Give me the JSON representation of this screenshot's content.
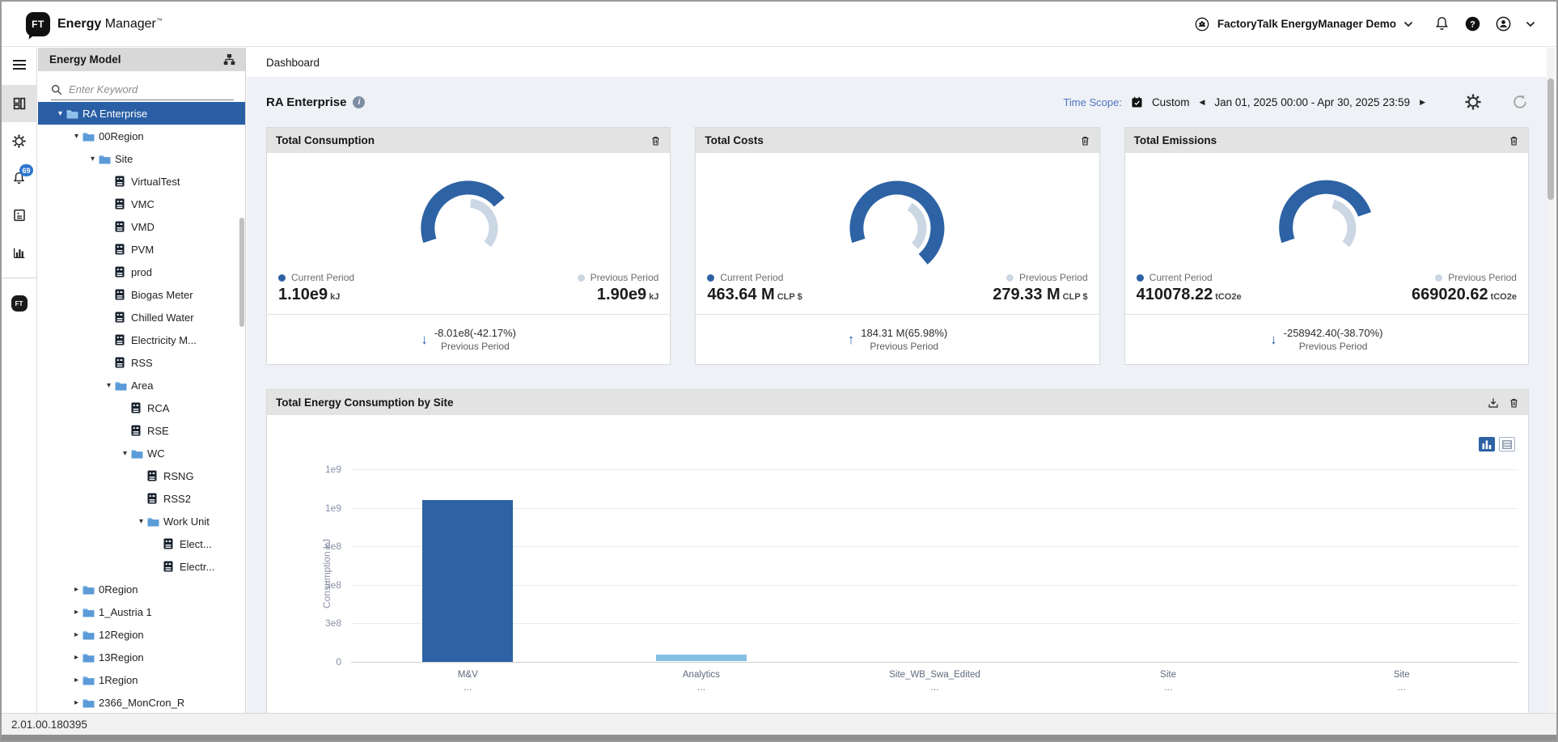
{
  "app": {
    "logo_text": "FT",
    "brand_bold": "Energy",
    "brand_regular": "Manager",
    "brand_tm": "™",
    "version": "2.01.00.180395"
  },
  "header": {
    "tenant": "FactoryTalk EnergyManager Demo"
  },
  "rail": {
    "items": [
      {
        "icon": "menu-icon",
        "active": false
      },
      {
        "icon": "dashboard-icon",
        "active": true
      },
      {
        "icon": "settings-icon",
        "active": false
      },
      {
        "icon": "notifications-icon",
        "active": false,
        "badge": "69"
      },
      {
        "icon": "meter-icon",
        "active": false
      },
      {
        "icon": "bar-chart-icon",
        "active": false
      },
      {
        "icon": "factorytalk-icon",
        "active": false,
        "divider_before": true
      }
    ]
  },
  "sidebar": {
    "title": "Energy Model",
    "search_placeholder": "Enter Keyword",
    "tree": [
      {
        "label": "RA Enterprise",
        "level": 0,
        "type": "folder",
        "state": "expanded",
        "selected": true
      },
      {
        "label": "00Region",
        "level": 1,
        "type": "folder",
        "state": "expanded",
        "selected": false
      },
      {
        "label": "Site",
        "level": 2,
        "type": "folder",
        "state": "expanded",
        "selected": false
      },
      {
        "label": "VirtualTest",
        "level": 3,
        "type": "meter",
        "state": "leaf",
        "selected": false
      },
      {
        "label": "VMC",
        "level": 3,
        "type": "meter",
        "state": "leaf",
        "selected": false
      },
      {
        "label": "VMD",
        "level": 3,
        "type": "meter",
        "state": "leaf",
        "selected": false
      },
      {
        "label": "PVM",
        "level": 3,
        "type": "meter",
        "state": "leaf",
        "selected": false
      },
      {
        "label": "prod",
        "level": 3,
        "type": "meter",
        "state": "leaf",
        "selected": false
      },
      {
        "label": "Biogas Meter",
        "level": 3,
        "type": "meter",
        "state": "leaf",
        "selected": false
      },
      {
        "label": "Chilled Water",
        "level": 3,
        "type": "meter",
        "state": "leaf",
        "selected": false
      },
      {
        "label": "Electricity M...",
        "level": 3,
        "type": "meter",
        "state": "leaf",
        "selected": false
      },
      {
        "label": "RSS",
        "level": 3,
        "type": "meter",
        "state": "leaf",
        "selected": false
      },
      {
        "label": "Area",
        "level": 3,
        "type": "folder",
        "state": "expanded",
        "selected": false
      },
      {
        "label": "RCA",
        "level": 4,
        "type": "meter",
        "state": "leaf",
        "selected": false
      },
      {
        "label": "RSE",
        "level": 4,
        "type": "meter",
        "state": "leaf",
        "selected": false
      },
      {
        "label": "WC",
        "level": 4,
        "type": "folder",
        "state": "expanded",
        "selected": false
      },
      {
        "label": "RSNG",
        "level": 5,
        "type": "meter",
        "state": "leaf",
        "selected": false
      },
      {
        "label": "RSS2",
        "level": 5,
        "type": "meter",
        "state": "leaf",
        "selected": false
      },
      {
        "label": "Work Unit",
        "level": 5,
        "type": "folder",
        "state": "expanded",
        "selected": false
      },
      {
        "label": "Elect...",
        "level": 6,
        "type": "meter",
        "state": "leaf",
        "selected": false
      },
      {
        "label": "Electr...",
        "level": 6,
        "type": "meter",
        "state": "leaf",
        "selected": false
      },
      {
        "label": "0Region",
        "level": 1,
        "type": "folder",
        "state": "collapsed",
        "selected": false
      },
      {
        "label": "1_Austria 1",
        "level": 1,
        "type": "folder",
        "state": "collapsed",
        "selected": false
      },
      {
        "label": "12Region",
        "level": 1,
        "type": "folder",
        "state": "collapsed",
        "selected": false
      },
      {
        "label": "13Region",
        "level": 1,
        "type": "folder",
        "state": "collapsed",
        "selected": false
      },
      {
        "label": "1Region",
        "level": 1,
        "type": "folder",
        "state": "collapsed",
        "selected": false
      },
      {
        "label": "2366_MonCron_R",
        "level": 1,
        "type": "folder",
        "state": "collapsed",
        "selected": false
      }
    ]
  },
  "tabbar": {
    "dashboard": "Dashboard"
  },
  "page": {
    "title": "RA Enterprise",
    "time_scope_label": "Time Scope:",
    "time_scope_mode": "Custom",
    "time_scope_range": "Jan 01, 2025 00:00 - Apr 30, 2025 23:59"
  },
  "kpi_cards": [
    {
      "title": "Total Consumption",
      "current_label": "Current Period",
      "current_value": "1.10e9",
      "current_unit": "kJ",
      "previous_label": "Previous Period",
      "previous_value": "1.90e9",
      "previous_unit": "kJ",
      "delta_value": "-8.01e8(-42.17%)",
      "delta_caption": "Previous Period",
      "delta_direction": "down",
      "gauge": {
        "blue": [
          198,
          40
        ],
        "gray": [
          85,
          -40
        ]
      }
    },
    {
      "title": "Total Costs",
      "current_label": "Current Period",
      "current_value": "463.64 M",
      "current_unit": "CLP $",
      "previous_label": "Previous Period",
      "previous_value": "279.33 M",
      "previous_unit": "CLP $",
      "delta_value": "184.31 M(65.98%)",
      "delta_caption": "Previous Period",
      "delta_direction": "up",
      "gauge": {
        "blue": [
          198,
          -50
        ],
        "gray": [
          60,
          -45
        ]
      }
    },
    {
      "title": "Total Emissions",
      "current_label": "Current Period",
      "current_value": "410078.22",
      "current_unit": "tCO2e",
      "previous_label": "Previous Period",
      "previous_value": "669020.62",
      "previous_unit": "tCO2e",
      "delta_value": "-258942.40(-38.70%)",
      "delta_caption": "Previous Period",
      "delta_direction": "down",
      "gauge": {
        "blue": [
          198,
          20
        ],
        "gray": [
          75,
          -40
        ]
      }
    }
  ],
  "chart_card": {
    "title": "Total Energy Consumption by Site"
  },
  "chart_data": [
    {
      "type": "gauge",
      "title": "Total Consumption",
      "unit": "kJ",
      "series": [
        {
          "name": "Current Period",
          "value": 1100000000
        },
        {
          "name": "Previous Period",
          "value": 1900000000
        }
      ],
      "delta": "-8.01e8(-42.17%)"
    },
    {
      "type": "gauge",
      "title": "Total Costs",
      "unit": "CLP $",
      "series": [
        {
          "name": "Current Period",
          "value": 463640000
        },
        {
          "name": "Previous Period",
          "value": 279330000
        }
      ],
      "delta": "184.31 M(65.98%)"
    },
    {
      "type": "gauge",
      "title": "Total Emissions",
      "unit": "tCO2e",
      "series": [
        {
          "name": "Current Period",
          "value": 410078.22
        },
        {
          "name": "Previous Period",
          "value": 669020.62
        }
      ],
      "delta": "-258942.40(-38.70%)"
    },
    {
      "type": "bar",
      "title": "Total Energy Consumption by Site",
      "xlabel": "",
      "ylabel": "Consumption kJ",
      "categories": [
        "M&V",
        "Analytics",
        "Site_WB_Swa_Edited",
        "Site",
        "Site"
      ],
      "truncated_sublabels": [
        "…",
        "…",
        "…",
        "…",
        "…"
      ],
      "values": [
        1050000000,
        45000000,
        0,
        0,
        0
      ],
      "bar_colors": [
        "#2d62a4",
        "#85c0e4",
        "#85c0e4",
        "#85c0e4",
        "#85c0e4"
      ],
      "ylim": [
        0,
        1250000000
      ],
      "ytick_labels_bottom_to_top": [
        "0",
        "3e8",
        "5e8",
        "8e8",
        "1e9",
        "1e9"
      ],
      "grid": true,
      "legend_position": "none"
    }
  ],
  "colors": {
    "primary_blue": "#2d62a4",
    "light_gauge": "#ccd7e4",
    "light_bar": "#85c0e4",
    "selected_row": "#2a5fa5",
    "timescope_label": "#4f74c4",
    "badge_blue": "#2e77d0",
    "content_bg": "#eef1f5"
  },
  "statusbar": {
    "version": "2.01.00.180395"
  }
}
